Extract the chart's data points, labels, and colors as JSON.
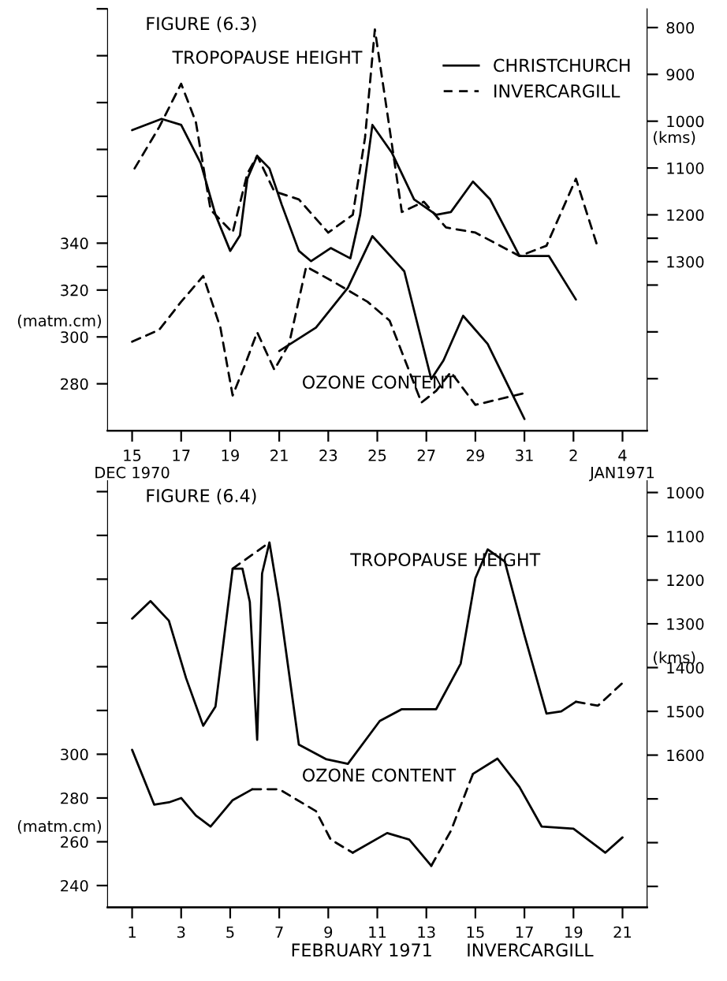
{
  "chart_data": [
    {
      "type": "line",
      "title": "FIGURE (6.3)",
      "ylabel": "(matm.cm)",
      "y2label": "(kms)",
      "annotations": [
        "TROPOPAUSE HEIGHT",
        "OZONE CONTENT"
      ],
      "xlim": [
        "1970-12-14",
        "1971-01-05"
      ],
      "xticks": [
        {
          "value": "1970-12-15",
          "label": "15\nDEC 1970"
        },
        {
          "value": "1970-12-17",
          "label": "17"
        },
        {
          "value": "1970-12-19",
          "label": "19"
        },
        {
          "value": "1970-12-21",
          "label": "21"
        },
        {
          "value": "1970-12-23",
          "label": "23"
        },
        {
          "value": "1970-12-25",
          "label": "25"
        },
        {
          "value": "1970-12-27",
          "label": "27"
        },
        {
          "value": "1970-12-29",
          "label": "29"
        },
        {
          "value": "1970-12-31",
          "label": "31"
        },
        {
          "value": "1971-01-02",
          "label": "2"
        },
        {
          "value": "1971-01-04",
          "label": "4\nJAN1971"
        }
      ],
      "ylim": [
        260,
        440
      ],
      "yticks": [
        280,
        300,
        320,
        {
          "value": 330,
          "label": null
        },
        340,
        {
          "value": 360,
          "label": null
        },
        {
          "value": 380,
          "label": null
        },
        {
          "value": 400,
          "label": null
        },
        {
          "value": 420,
          "label": null
        },
        {
          "value": 440,
          "label": null
        }
      ],
      "y2lim": [
        1661,
        760
      ],
      "y2ticks": [
        800,
        900,
        1000,
        1100,
        1200,
        {
          "value": 1250,
          "label": null
        },
        1300,
        {
          "value": 1350,
          "label": null
        },
        {
          "value": 1450,
          "label": null
        },
        {
          "value": 1550,
          "label": null
        }
      ],
      "legend": "top right",
      "grid": false,
      "marker": "none",
      "series": [
        {
          "name": "CHRISTCHURCH",
          "color": "#000000",
          "axis": "y2",
          "line_style": "solid",
          "x": [
            "1970-12-15",
            "1970-12-16T04:48",
            "1970-12-17",
            "1970-12-17T19:12",
            "1970-12-18T09:36",
            "1970-12-19",
            "1970-12-19T09:36",
            "1970-12-19T16:48",
            "1970-12-20T02:24",
            "1970-12-20T14:24",
            "1970-12-21T02:24",
            "1970-12-21T19:12",
            "1970-12-22T07:12",
            "1970-12-23T02:24",
            "1970-12-23T21:36",
            "1970-12-24T07:12",
            "1970-12-24T19:12",
            "1970-12-25T14:24",
            "1970-12-26T12:00",
            "1970-12-27T09:36",
            "1970-12-28",
            "1970-12-28T21:36",
            "1970-12-29T14:24",
            "1970-12-30T19:12",
            "1971-01-01",
            "1971-01-02T02:24"
          ],
          "values": [
            1019,
            995,
            1008,
            1090,
            1200,
            1277,
            1244,
            1123,
            1074,
            1101,
            1178,
            1277,
            1299,
            1271,
            1293,
            1200,
            1008,
            1068,
            1167,
            1200,
            1194,
            1129,
            1167,
            1288,
            1288,
            1381
          ]
        },
        {
          "name": "INVERCARGILL",
          "color": "#000000",
          "axis": "y2",
          "line_style": "dashed",
          "x": [
            "1970-12-15T02:24",
            "1970-12-16T02:24",
            "1970-12-17",
            "1970-12-17T14:24",
            "1970-12-18T04:48",
            "1970-12-19T02:24",
            "1970-12-19T16:48",
            "1970-12-20T02:24",
            "1970-12-20T19:12",
            "1970-12-21T19:12",
            "1970-12-23",
            "1970-12-24",
            "1970-12-24T12:00",
            "1970-12-24T21:36",
            "1970-12-25T09:36",
            "1970-12-26",
            "1970-12-26T21:36",
            "1970-12-27T19:12",
            "1970-12-29",
            "1970-12-30T19:12",
            "1970-12-31T21:36",
            "1971-01-02T02:24",
            "1971-01-03"
          ],
          "values": [
            1101,
            1013,
            920,
            1002,
            1189,
            1238,
            1112,
            1074,
            1150,
            1167,
            1238,
            1200,
            1035,
            804,
            980,
            1194,
            1172,
            1227,
            1238,
            1288,
            1266,
            1123,
            1271
          ]
        },
        {
          "color": "#000000",
          "axis": "y",
          "line_style": "solid",
          "x": [
            "1970-12-21",
            "1970-12-22T12:00",
            "1970-12-23T19:12",
            "1970-12-24T19:12",
            "1970-12-26T02:24",
            "1970-12-27T04:48",
            "1970-12-27T16:48",
            "1970-12-28T12:00",
            "1970-12-29T12:00",
            "1970-12-31"
          ],
          "values": [
            294,
            304,
            321,
            343,
            328,
            282,
            290,
            309,
            297,
            265
          ]
        },
        {
          "color": "#000000",
          "axis": "y",
          "line_style": "dashed",
          "x": [
            "1970-12-15",
            "1970-12-16T02:24",
            "1970-12-17",
            "1970-12-17T21:36",
            "1970-12-18T14:24",
            "1970-12-19T02:24",
            "1970-12-19T14:24",
            "1970-12-20T02:24",
            "1970-12-20T19:12",
            "1970-12-21T09:36",
            "1970-12-22T02:24",
            "1970-12-23T07:12",
            "1970-12-24T14:24",
            "1970-12-25T12:00",
            "1970-12-26T19:12",
            "1970-12-27T09:36",
            "1970-12-28",
            "1970-12-29",
            "1970-12-31"
          ],
          "values": [
            298,
            303,
            315,
            326,
            304,
            275,
            288,
            302,
            286,
            297,
            330,
            323,
            315,
            307,
            272,
            277,
            285,
            271,
            276
          ]
        }
      ]
    },
    {
      "type": "line",
      "title": "FIGURE (6.4)",
      "ylabel": "(matm.cm)",
      "y2label": "(kms)",
      "xlabel": "FEBRUARY 1971      INVERCARGILL",
      "annotations": [
        "TROPOPAUSE HEIGHT",
        "OZONE CONTENT"
      ],
      "xlim": [
        0,
        22
      ],
      "xticks": [
        1,
        3,
        5,
        7,
        9,
        11,
        13,
        15,
        17,
        19,
        21
      ],
      "ylim": [
        230,
        425
      ],
      "yticks": [
        240,
        260,
        280,
        300,
        {
          "value": 320,
          "label": null
        },
        {
          "value": 340,
          "label": null
        },
        {
          "value": 360,
          "label": null
        },
        {
          "value": 380,
          "label": null
        },
        {
          "value": 400,
          "label": null
        },
        {
          "value": 420,
          "label": null
        }
      ],
      "y2lim": [
        1948,
        973
      ],
      "y2ticks": [
        1000,
        1100,
        1200,
        1300,
        1400,
        1500,
        1600,
        {
          "value": 1700,
          "label": null
        },
        {
          "value": 1800,
          "label": null
        },
        {
          "value": 1900,
          "label": null
        }
      ],
      "legend": false,
      "grid": false,
      "marker": "none",
      "series": [
        {
          "color": "#000000",
          "axis": "y2",
          "line_style": "solid",
          "x": [
            1.0,
            1.75,
            2.5,
            3.2,
            3.9,
            4.4,
            5.1,
            5.5,
            5.8,
            6.1,
            6.3,
            6.6,
            7.0,
            7.8,
            8.9,
            9.8,
            11.1,
            12.0,
            13.4,
            14.4,
            15.0,
            15.5,
            16.2,
            17.0,
            17.9,
            18.5,
            19.1
          ],
          "values": [
            1288,
            1248,
            1293,
            1424,
            1533,
            1489,
            1174,
            1174,
            1250,
            1565,
            1185,
            1114,
            1250,
            1576,
            1609,
            1620,
            1522,
            1495,
            1495,
            1391,
            1196,
            1130,
            1158,
            1326,
            1505,
            1500,
            1478
          ]
        },
        {
          "color": "#000000",
          "axis": "y2",
          "line_style": "dashed",
          "x": [
            5.1,
            6.6
          ],
          "values": [
            1174,
            1114
          ]
        },
        {
          "color": "#000000",
          "axis": "y2",
          "line_style": "dashed",
          "x": [
            19.1,
            20.0,
            21.0
          ],
          "values": [
            1478,
            1487,
            1435
          ]
        },
        {
          "color": "#000000",
          "axis": "y",
          "line_style": "solid",
          "x": [
            1.0,
            1.9,
            2.5,
            3.0,
            3.6,
            4.2,
            5.1,
            5.9
          ],
          "values": [
            302,
            277,
            278,
            280,
            272,
            267,
            279,
            284
          ]
        },
        {
          "color": "#000000",
          "axis": "y",
          "line_style": "dashed",
          "x": [
            5.9,
            7.0,
            8.5,
            9.1,
            10.0
          ],
          "values": [
            284,
            284,
            274,
            261,
            255
          ]
        },
        {
          "color": "#000000",
          "axis": "y",
          "line_style": "solid",
          "x": [
            10.0,
            11.4,
            12.3,
            13.2
          ],
          "values": [
            255,
            264,
            261,
            249
          ]
        },
        {
          "color": "#000000",
          "axis": "y",
          "line_style": "dashed",
          "x": [
            13.2,
            14.0,
            14.9
          ],
          "values": [
            249,
            265,
            291
          ]
        },
        {
          "color": "#000000",
          "axis": "y",
          "line_style": "solid",
          "x": [
            14.9,
            15.9,
            16.8,
            17.7,
            19.0,
            20.3,
            21.0
          ],
          "values": [
            291,
            298,
            285,
            267,
            266,
            255,
            262
          ]
        }
      ]
    }
  ]
}
